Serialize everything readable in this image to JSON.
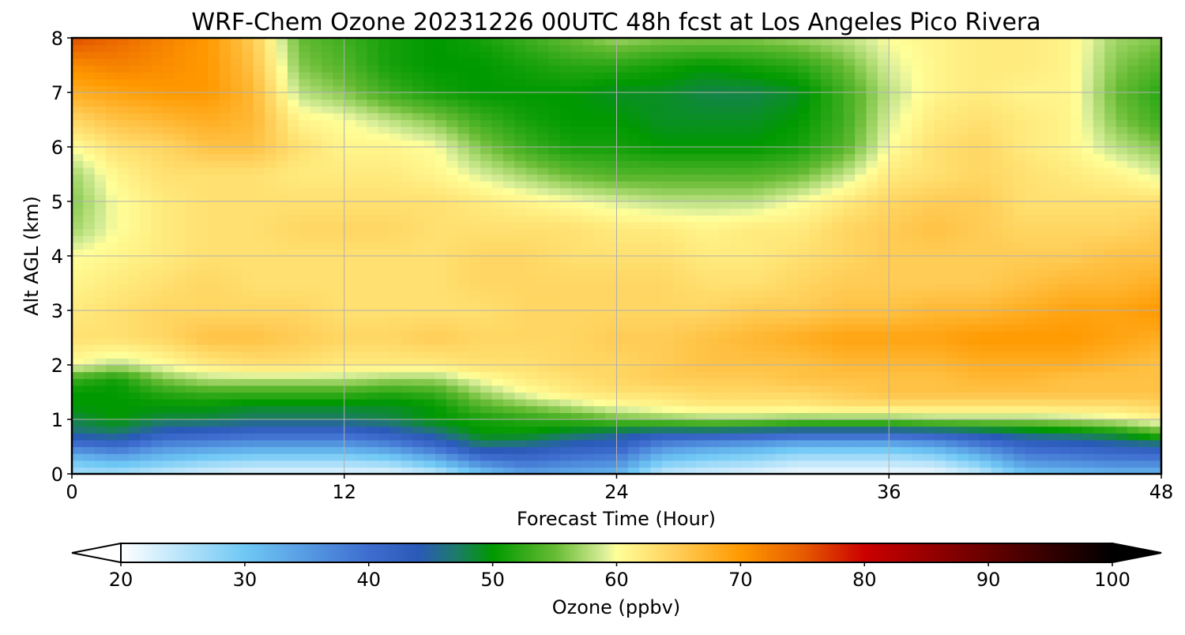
{
  "chart_data": {
    "type": "heatmap",
    "title": "WRF-Chem Ozone  20231226 00UTC 48h fcst at Los Angeles Pico Rivera",
    "xlabel": "Forecast Time (Hour)",
    "ylabel": "Alt AGL (km)",
    "xlim": [
      0,
      48
    ],
    "ylim": [
      0,
      8
    ],
    "x_ticks": [
      "0",
      "12",
      "24",
      "36",
      "48"
    ],
    "y_ticks": [
      "0",
      "1",
      "2",
      "3",
      "4",
      "5",
      "6",
      "7",
      "8"
    ],
    "grid": true,
    "x": [
      0,
      2,
      4,
      6,
      8,
      10,
      12,
      14,
      16,
      18,
      20,
      22,
      24,
      26,
      28,
      30,
      32,
      34,
      36,
      38,
      40,
      42,
      44,
      46,
      48
    ],
    "y": [
      0,
      0.25,
      0.5,
      0.75,
      1.0,
      1.25,
      1.5,
      1.75,
      2.0,
      2.5,
      3.0,
      3.5,
      4.0,
      4.5,
      5.0,
      5.5,
      6.0,
      6.5,
      7.0,
      7.5,
      8.0
    ],
    "z": [
      [
        26,
        26,
        24,
        23,
        22,
        22,
        22,
        22,
        24,
        30,
        34,
        33,
        32,
        24,
        23,
        22,
        21,
        21,
        21,
        21,
        24,
        30,
        31,
        32,
        32
      ],
      [
        30,
        32,
        30,
        28,
        27,
        27,
        27,
        28,
        32,
        38,
        40,
        38,
        37,
        30,
        28,
        27,
        25,
        25,
        25,
        26,
        30,
        36,
        37,
        38,
        38
      ],
      [
        38,
        40,
        36,
        35,
        34,
        34,
        34,
        36,
        40,
        46,
        45,
        43,
        42,
        36,
        34,
        33,
        31,
        31,
        31,
        33,
        37,
        41,
        42,
        43,
        44
      ],
      [
        46,
        47,
        43,
        42,
        41,
        41,
        41,
        43,
        46,
        50,
        50,
        48,
        46,
        44,
        44,
        43,
        42,
        42,
        42,
        43,
        45,
        47,
        48,
        50,
        54
      ],
      [
        48,
        50,
        48,
        48,
        47,
        47,
        47,
        48,
        50,
        51,
        52,
        53,
        55,
        56,
        57,
        57,
        56,
        56,
        56,
        57,
        57,
        57,
        58,
        59,
        61
      ],
      [
        50,
        50,
        50,
        50,
        49,
        49,
        49,
        49,
        50,
        54,
        56,
        58,
        60,
        61,
        62,
        62,
        62,
        63,
        63,
        63,
        63,
        63,
        63,
        63,
        64
      ],
      [
        50,
        50,
        52,
        53,
        53,
        53,
        53,
        52,
        53,
        57,
        60,
        62,
        63,
        63,
        64,
        64,
        64,
        65,
        66,
        66,
        66,
        66,
        66,
        66,
        66
      ],
      [
        53,
        51,
        56,
        58,
        58,
        58,
        58,
        57,
        57,
        60,
        62,
        63,
        64,
        65,
        65,
        65,
        66,
        66,
        66,
        66,
        67,
        67,
        66,
        66,
        66
      ],
      [
        60,
        58,
        60,
        62,
        63,
        63,
        62,
        62,
        62,
        63,
        63,
        64,
        64,
        65,
        66,
        66,
        66,
        67,
        67,
        67,
        68,
        68,
        68,
        67,
        66
      ],
      [
        63,
        63,
        64,
        66,
        66,
        65,
        64,
        64,
        65,
        64,
        64,
        64,
        65,
        65,
        66,
        67,
        68,
        69,
        69,
        69,
        70,
        70,
        70,
        69,
        68
      ],
      [
        62,
        63,
        64,
        64,
        64,
        64,
        63,
        63,
        63,
        63,
        64,
        64,
        64,
        64,
        64,
        65,
        65,
        66,
        66,
        67,
        67,
        68,
        69,
        69,
        70
      ],
      [
        61,
        62,
        63,
        64,
        63,
        63,
        63,
        63,
        63,
        64,
        64,
        64,
        64,
        64,
        63,
        63,
        64,
        65,
        65,
        65,
        65,
        66,
        67,
        67,
        68
      ],
      [
        60,
        61,
        62,
        63,
        63,
        63,
        63,
        63,
        63,
        64,
        64,
        63,
        63,
        63,
        62,
        62,
        63,
        64,
        65,
        65,
        65,
        65,
        65,
        66,
        66
      ],
      [
        57,
        60,
        62,
        63,
        63,
        64,
        64,
        64,
        63,
        63,
        63,
        63,
        62,
        62,
        61,
        62,
        62,
        64,
        65,
        66,
        65,
        64,
        64,
        64,
        65
      ],
      [
        56,
        60,
        62,
        63,
        63,
        63,
        63,
        63,
        63,
        62,
        61,
        60,
        59,
        58,
        58,
        58,
        60,
        62,
        64,
        65,
        65,
        63,
        63,
        63,
        63
      ],
      [
        57,
        61,
        63,
        63,
        63,
        62,
        62,
        62,
        61,
        59,
        57,
        55,
        54,
        54,
        54,
        54,
        55,
        58,
        62,
        63,
        64,
        63,
        62,
        61,
        59
      ],
      [
        60,
        63,
        64,
        66,
        66,
        63,
        61,
        61,
        60,
        56,
        53,
        51,
        51,
        50,
        50,
        50,
        51,
        54,
        60,
        63,
        64,
        62,
        61,
        58,
        56
      ],
      [
        64,
        66,
        67,
        68,
        67,
        61,
        60,
        58,
        56,
        53,
        51,
        50,
        50,
        49,
        49,
        49,
        50,
        53,
        59,
        62,
        63,
        62,
        61,
        56,
        53
      ],
      [
        68,
        69,
        70,
        70,
        67,
        58,
        56,
        53,
        51,
        50,
        50,
        50,
        49,
        49,
        48,
        48,
        49,
        53,
        58,
        61,
        62,
        61,
        61,
        55,
        52
      ],
      [
        71,
        72,
        71,
        70,
        66,
        56,
        54,
        51,
        50,
        50,
        51,
        52,
        52,
        51,
        50,
        51,
        52,
        55,
        59,
        61,
        62,
        62,
        61,
        56,
        54
      ],
      [
        76,
        74,
        72,
        70,
        65,
        55,
        53,
        51,
        50,
        51,
        53,
        55,
        57,
        56,
        56,
        56,
        57,
        58,
        60,
        61,
        62,
        62,
        61,
        57,
        56
      ]
    ],
    "colorbar": {
      "label": "Ozone  (ppbv)",
      "min": 20,
      "max": 100,
      "ticks": [
        "20",
        "30",
        "40",
        "50",
        "60",
        "70",
        "80",
        "90",
        "100"
      ],
      "extend": "both",
      "stops": [
        {
          "v": 20,
          "c": "#ffffff"
        },
        {
          "v": 30,
          "c": "#6fc8f5"
        },
        {
          "v": 40,
          "c": "#3e6dcf"
        },
        {
          "v": 44,
          "c": "#2a5ab8"
        },
        {
          "v": 47,
          "c": "#1e7a6c"
        },
        {
          "v": 50,
          "c": "#009900"
        },
        {
          "v": 55,
          "c": "#66bb33"
        },
        {
          "v": 59,
          "c": "#d9ee99"
        },
        {
          "v": 60,
          "c": "#ffff99"
        },
        {
          "v": 65,
          "c": "#ffcc55"
        },
        {
          "v": 70,
          "c": "#ff9900"
        },
        {
          "v": 75,
          "c": "#e65c00"
        },
        {
          "v": 80,
          "c": "#cc0000"
        },
        {
          "v": 90,
          "c": "#660000"
        },
        {
          "v": 100,
          "c": "#000000"
        }
      ]
    }
  }
}
